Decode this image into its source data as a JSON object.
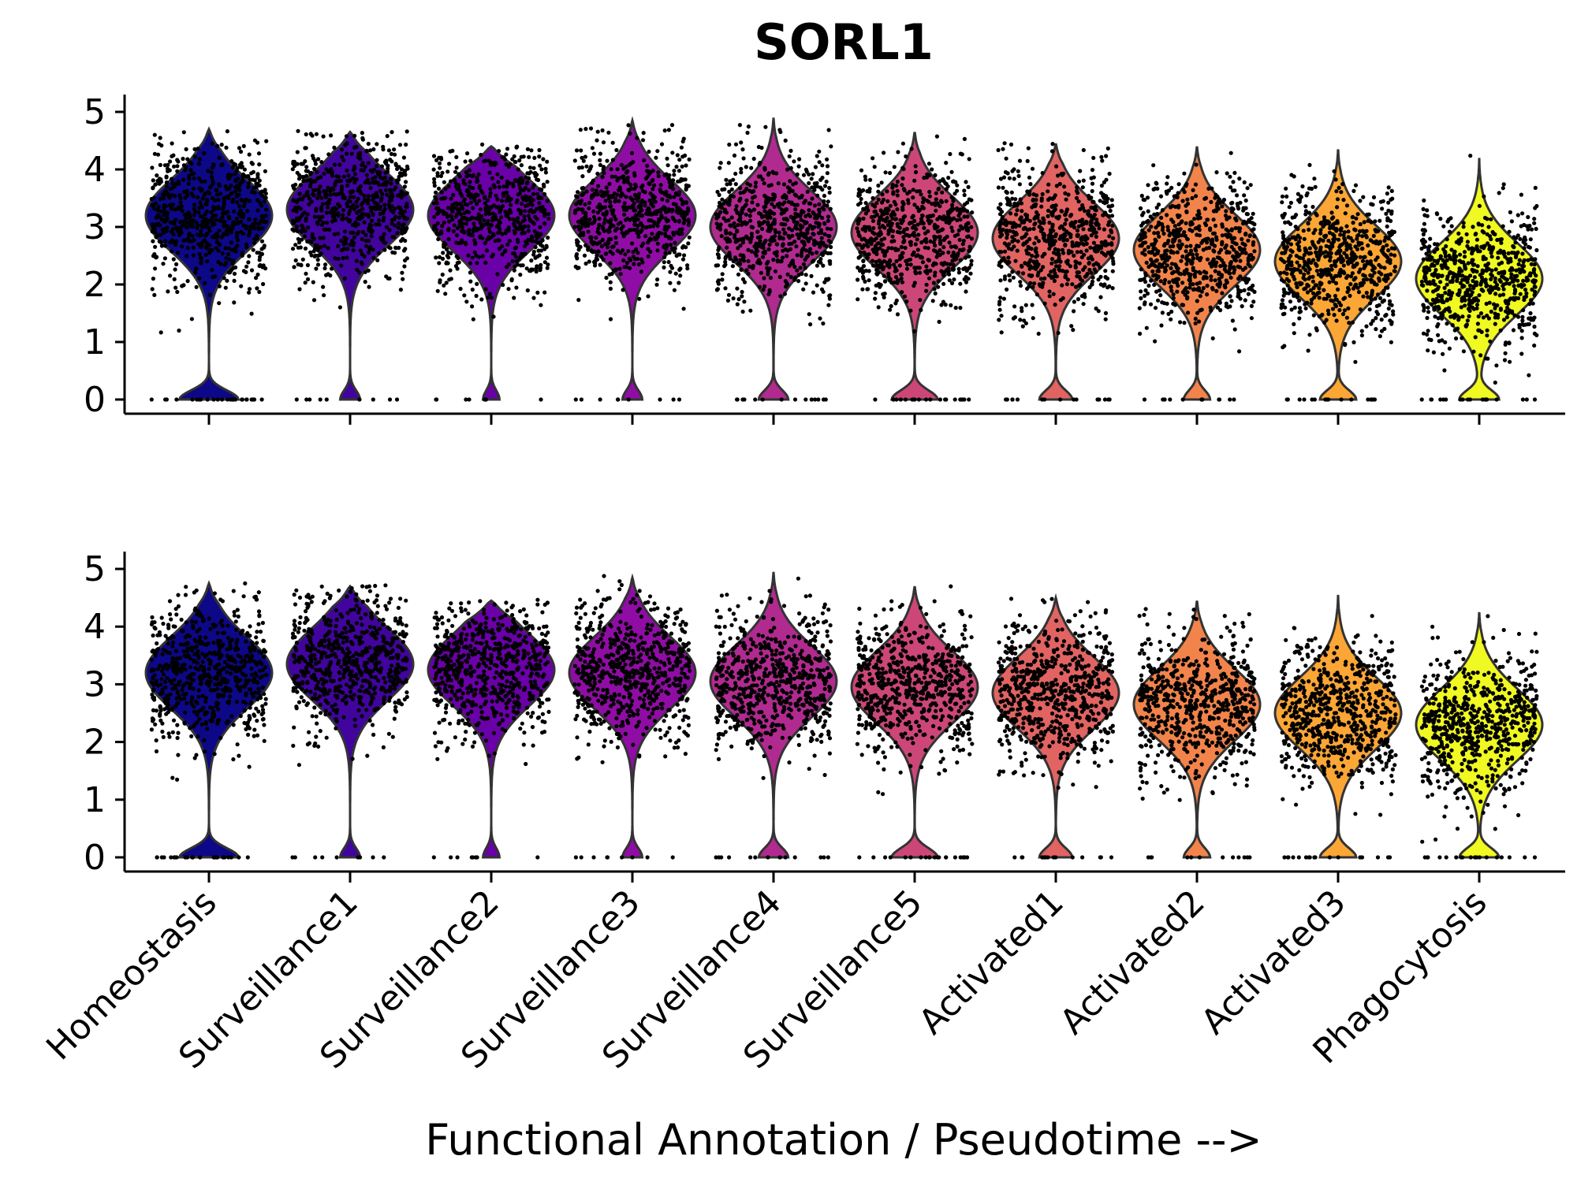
{
  "chart_data": {
    "type": "violin",
    "title": "SORL1",
    "xlabel": "Functional Annotation / Pseudotime -->",
    "ylabel": "",
    "ylim": [
      -0.2,
      5.3
    ],
    "yticks": [
      0,
      1,
      2,
      3,
      4,
      5
    ],
    "categories": [
      "Homeostasis",
      "Surveillance1",
      "Surveillance2",
      "Surveillance3",
      "Surveillance4",
      "Surveillance5",
      "Activated1",
      "Activated2",
      "Activated3",
      "Phagocytosis"
    ],
    "colors": [
      "#0d0887",
      "#41049d",
      "#6a00a8",
      "#8f0da4",
      "#b12a90",
      "#cc4778",
      "#e16462",
      "#f2844b",
      "#fca636",
      "#f0f921"
    ],
    "panels": [
      {
        "name": "",
        "medians": [
          3.2,
          3.3,
          3.2,
          3.2,
          3.0,
          2.9,
          2.8,
          2.6,
          2.4,
          2.1
        ],
        "maxima": [
          4.7,
          4.65,
          4.4,
          4.85,
          4.9,
          4.65,
          4.45,
          4.4,
          4.35,
          4.2
        ],
        "zero_fraction": [
          0.18,
          0.06,
          0.05,
          0.06,
          0.09,
          0.14,
          0.1,
          0.08,
          0.11,
          0.12
        ]
      },
      {
        "name": "",
        "medians": [
          3.2,
          3.35,
          3.25,
          3.2,
          3.05,
          2.95,
          2.85,
          2.65,
          2.5,
          2.3
        ],
        "maxima": [
          4.75,
          4.7,
          4.45,
          4.85,
          4.95,
          4.7,
          4.5,
          4.45,
          4.55,
          4.25
        ],
        "zero_fraction": [
          0.18,
          0.06,
          0.05,
          0.06,
          0.09,
          0.14,
          0.1,
          0.08,
          0.11,
          0.12
        ]
      }
    ]
  }
}
